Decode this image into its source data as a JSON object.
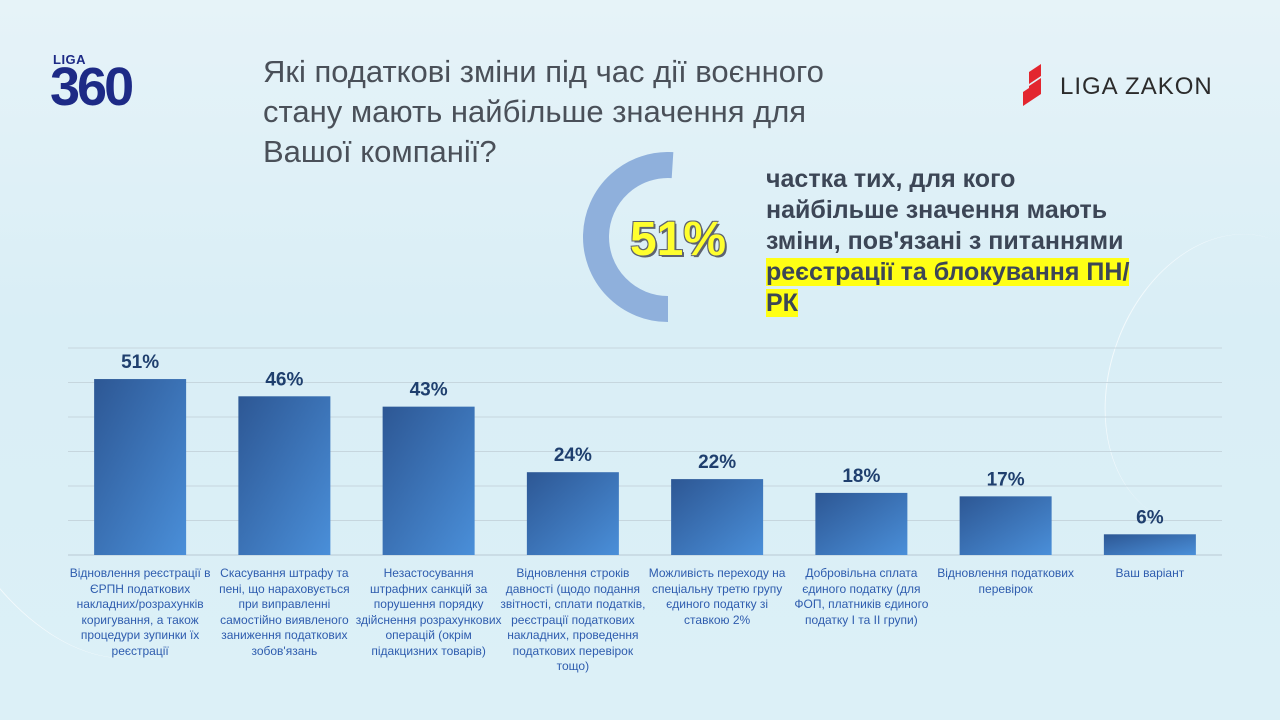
{
  "header": {
    "logo_left_small": "LIGA",
    "logo_left_big": "360",
    "title": "Які податкові зміни під час дії воєнного стану мають найбільше значення для Вашої компанії?",
    "logo_right": "LIGA ZAKON"
  },
  "highlight": {
    "percent": "51%",
    "donut_fraction": 0.51,
    "text_plain": "частка тих, для кого найбільше значення мають зміни, пов'язані з питаннями ",
    "text_highlight": "реєстрації та блокування ПН/РК"
  },
  "colors": {
    "bar_dark": "#2d5794",
    "bar_light": "#4a8fd9",
    "donut": "#8fb0dc",
    "label_text": "#2e5cae",
    "value_text": "#1f3f6e",
    "highlight": "#ffff14"
  },
  "chart_data": {
    "type": "bar",
    "categories": [
      "Відновлення реєстрації в ЄРПН податкових накладних/розрахунків коригування, а також процедури зупинки їх реєстрації",
      "Скасування штрафу та пені, що нараховується при виправленні самостійно виявленого заниження податкових зобов'язань",
      "Незастосування штрафних санкцій за порушення порядку здійснення розрахункових операцій (окрім підакцизних товарів)",
      "Відновлення строків давності (щодо подання звітності, сплати податків, реєстрації податкових накладних, проведення податкових перевірок тощо)",
      "Можливість переходу на спеціальну третю групу єдиного податку зі ставкою 2%",
      "Добровільна  сплата єдиного податку (для ФОП, платників єдиного податку І та ІІ групи)",
      "Відновлення податкових перевірок",
      "Ваш варіант"
    ],
    "values": [
      51,
      46,
      43,
      24,
      22,
      18,
      17,
      6
    ],
    "value_labels": [
      "51%",
      "46%",
      "43%",
      "24%",
      "22%",
      "18%",
      "17%",
      "6%"
    ],
    "ylim": [
      0,
      60
    ],
    "grid": true,
    "legend": "none"
  }
}
